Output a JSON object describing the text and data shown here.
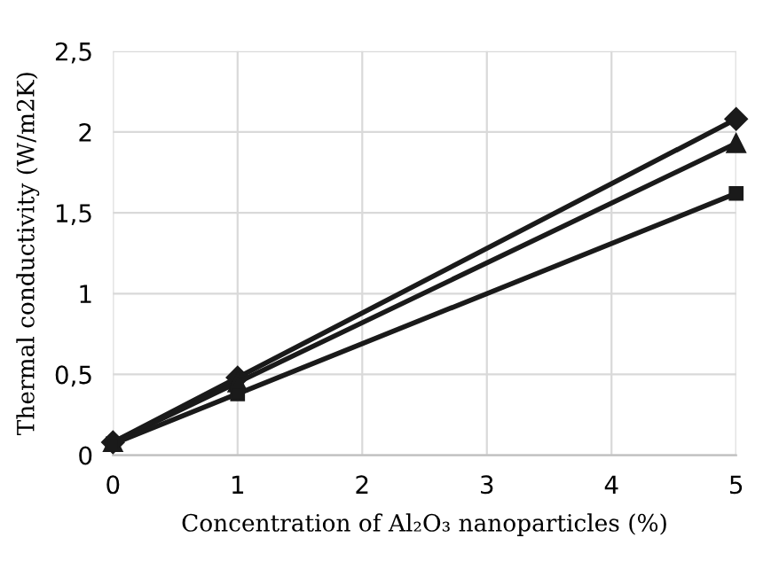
{
  "chart_data": {
    "type": "line",
    "xlabel": "Concentration of Al₂O₃ nanoparticles (%)",
    "ylabel": "Thermal conductivity (W/m2K)",
    "x": [
      0,
      1,
      5
    ],
    "series": [
      {
        "color": "#1a1a1a",
        "marker": "diamond",
        "values": [
          0.08,
          0.48,
          2.08
        ]
      },
      {
        "color": "#1a1a1a",
        "marker": "triangle",
        "values": [
          0.08,
          0.45,
          1.93
        ]
      },
      {
        "color": "#1a1a1a",
        "marker": "square",
        "values": [
          0.07,
          0.38,
          1.62
        ]
      }
    ],
    "xlim": [
      0,
      5
    ],
    "xticks": [
      0,
      1,
      2,
      3,
      4,
      5
    ],
    "ylim": [
      0,
      2.5
    ],
    "yticks": [
      0,
      {
        "value": 0.5,
        "label": "0,5"
      },
      1,
      {
        "value": 1.5,
        "label": "1,5"
      },
      2,
      {
        "value": 2.5,
        "label": "2,5"
      }
    ],
    "grid": true,
    "line_style": "solid"
  }
}
